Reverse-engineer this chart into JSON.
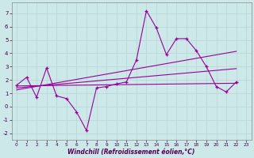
{
  "xlabel": "Windchill (Refroidissement éolien,°C)",
  "background_color": "#cce8e8",
  "grid_color": "#aacccc",
  "line_color": "#990099",
  "xlim": [
    -0.5,
    23.5
  ],
  "ylim": [
    -2.5,
    7.8
  ],
  "xticks": [
    0,
    1,
    2,
    3,
    4,
    5,
    6,
    7,
    8,
    9,
    10,
    11,
    12,
    13,
    14,
    15,
    16,
    17,
    18,
    19,
    20,
    21,
    22,
    23
  ],
  "yticks": [
    -2,
    -1,
    0,
    1,
    2,
    3,
    4,
    5,
    6,
    7
  ],
  "noisy_x": [
    0,
    1,
    2,
    3,
    4,
    5,
    6,
    7,
    8,
    9,
    10,
    11,
    12,
    13,
    14,
    15,
    16,
    17,
    18,
    19,
    20,
    21,
    22
  ],
  "noisy_y": [
    1.6,
    2.2,
    0.7,
    2.9,
    0.8,
    0.6,
    -0.4,
    -1.8,
    1.4,
    1.5,
    1.7,
    1.85,
    3.5,
    7.2,
    5.9,
    3.9,
    5.1,
    5.1,
    4.2,
    3.0,
    1.5,
    1.1,
    1.85
  ],
  "line1_pts": [
    [
      0,
      1.55
    ],
    [
      22,
      1.75
    ]
  ],
  "line2_pts": [
    [
      0,
      1.4
    ],
    [
      22,
      2.85
    ]
  ],
  "line3_pts": [
    [
      0,
      1.25
    ],
    [
      22,
      4.15
    ]
  ]
}
